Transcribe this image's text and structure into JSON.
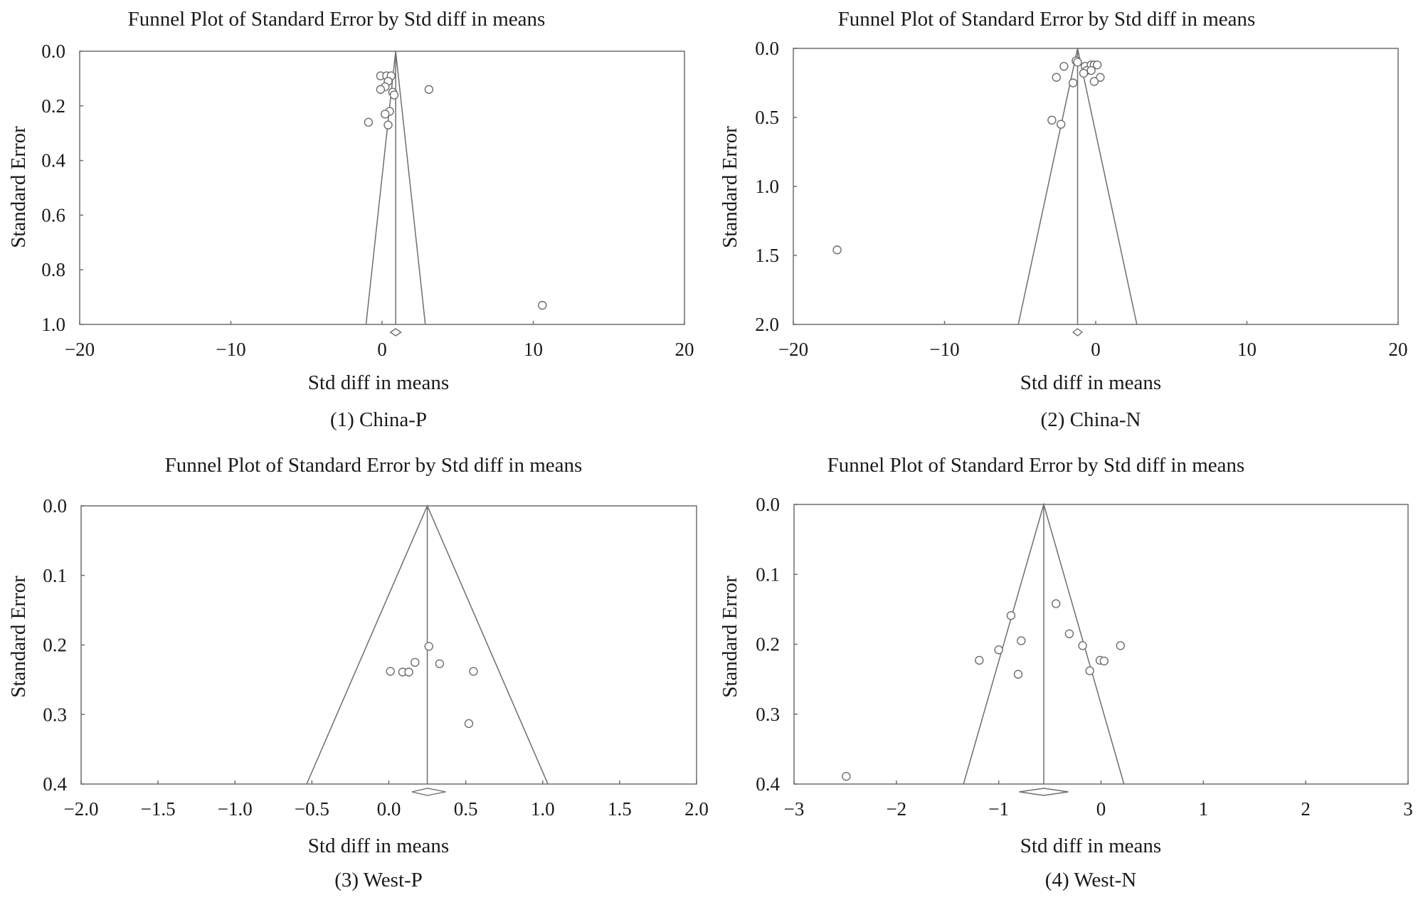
{
  "chart_data": [
    {
      "type": "scatter",
      "title": "Funnel Plot of Standard Error by Std diff in means",
      "xlabel": "Std diff in means",
      "ylabel": "Standard Error",
      "caption": "(1) China-P",
      "xlim": [
        -20,
        20
      ],
      "ylim": [
        0,
        1.0
      ],
      "y_inverted": true,
      "xticks": [
        -20,
        -10,
        0,
        10,
        20
      ],
      "xtick_labels": [
        "−20",
        "−10",
        "0",
        "10",
        "20"
      ],
      "yticks": [
        0,
        0.2,
        0.4,
        0.6,
        0.8,
        1.0
      ],
      "ytick_labels": [
        "0.0",
        "0.2",
        "0.4",
        "0.6",
        "0.8",
        "1.0"
      ],
      "pooled_effect": 0.9,
      "pooled_ci": [
        0.55,
        1.25
      ],
      "points": [
        {
          "x": -0.1,
          "y": 0.09
        },
        {
          "x": 0.3,
          "y": 0.09
        },
        {
          "x": 0.6,
          "y": 0.09
        },
        {
          "x": 0.4,
          "y": 0.11
        },
        {
          "x": 0.2,
          "y": 0.13
        },
        {
          "x": -0.1,
          "y": 0.14
        },
        {
          "x": 0.7,
          "y": 0.15
        },
        {
          "x": 0.8,
          "y": 0.16
        },
        {
          "x": 3.1,
          "y": 0.14
        },
        {
          "x": 0.5,
          "y": 0.22
        },
        {
          "x": 0.2,
          "y": 0.23
        },
        {
          "x": -0.9,
          "y": 0.26
        },
        {
          "x": 0.4,
          "y": 0.27
        },
        {
          "x": 10.6,
          "y": 0.93
        }
      ]
    },
    {
      "type": "scatter",
      "title": "Funnel Plot of Standard Error by Std diff in means",
      "xlabel": "Std diff in means",
      "ylabel": "Standard Error",
      "caption": "(2) China-N",
      "xlim": [
        -20,
        20
      ],
      "ylim": [
        0,
        2.0
      ],
      "y_inverted": true,
      "xticks": [
        -20,
        -10,
        0,
        10,
        20
      ],
      "xtick_labels": [
        "−20",
        "−10",
        "0",
        "10",
        "20"
      ],
      "yticks": [
        0,
        0.5,
        1.0,
        1.5,
        2.0
      ],
      "ytick_labels": [
        "0.0",
        "0.5",
        "1.0",
        "1.5",
        "2.0"
      ],
      "pooled_effect": -1.2,
      "pooled_ci": [
        -1.5,
        -0.9
      ],
      "points": [
        {
          "x": -1.3,
          "y": 0.09
        },
        {
          "x": -1.2,
          "y": 0.1
        },
        {
          "x": -2.1,
          "y": 0.13
        },
        {
          "x": -0.7,
          "y": 0.13
        },
        {
          "x": -0.3,
          "y": 0.12
        },
        {
          "x": -0.1,
          "y": 0.12
        },
        {
          "x": 0.1,
          "y": 0.12
        },
        {
          "x": -0.6,
          "y": 0.16
        },
        {
          "x": -0.3,
          "y": 0.16
        },
        {
          "x": -0.8,
          "y": 0.18
        },
        {
          "x": 0.3,
          "y": 0.21
        },
        {
          "x": -2.6,
          "y": 0.21
        },
        {
          "x": -0.1,
          "y": 0.24
        },
        {
          "x": -1.5,
          "y": 0.25
        },
        {
          "x": -2.9,
          "y": 0.52
        },
        {
          "x": -2.3,
          "y": 0.55
        },
        {
          "x": -17.1,
          "y": 1.46
        }
      ]
    },
    {
      "type": "scatter",
      "title": "Funnel Plot of Standard Error by Std diff in means",
      "xlabel": "Std diff in means",
      "ylabel": "Standard Error",
      "caption": "(3) West-P",
      "xlim": [
        -2.0,
        2.0
      ],
      "ylim": [
        0,
        0.4
      ],
      "y_inverted": true,
      "xticks": [
        -2.0,
        -1.5,
        -1.0,
        -0.5,
        0.0,
        0.5,
        1.0,
        1.5,
        2.0
      ],
      "xtick_labels": [
        "−2.0",
        "−1.5",
        "−1.0",
        "−0.5",
        "0.0",
        "0.5",
        "1.0",
        "1.5",
        "2.0"
      ],
      "yticks": [
        0,
        0.1,
        0.2,
        0.3,
        0.4
      ],
      "ytick_labels": [
        "0.0",
        "0.1",
        "0.2",
        "0.3",
        "0.4"
      ],
      "pooled_effect": 0.25,
      "pooled_ci": [
        0.15,
        0.37
      ],
      "points": [
        {
          "x": 0.26,
          "y": 0.202
        },
        {
          "x": 0.17,
          "y": 0.225
        },
        {
          "x": 0.33,
          "y": 0.227
        },
        {
          "x": 0.01,
          "y": 0.238
        },
        {
          "x": 0.09,
          "y": 0.239
        },
        {
          "x": 0.13,
          "y": 0.239
        },
        {
          "x": 0.55,
          "y": 0.238
        },
        {
          "x": 0.52,
          "y": 0.313
        }
      ]
    },
    {
      "type": "scatter",
      "title": "Funnel Plot of Standard Error by Std diff in means",
      "xlabel": "Std diff in means",
      "ylabel": "Standard Error",
      "caption": "(4) West-N",
      "xlim": [
        -3,
        3
      ],
      "ylim": [
        0,
        0.4
      ],
      "y_inverted": true,
      "xticks": [
        -3,
        -2,
        -1,
        0,
        1,
        2,
        3
      ],
      "xtick_labels": [
        "−3",
        "−2",
        "−1",
        "0",
        "1",
        "2",
        "3"
      ],
      "yticks": [
        0,
        0.1,
        0.2,
        0.3,
        0.4
      ],
      "ytick_labels": [
        "0.0",
        "0.1",
        "0.2",
        "0.3",
        "0.4"
      ],
      "pooled_effect": -0.56,
      "pooled_ci": [
        -0.8,
        -0.32
      ],
      "points": [
        {
          "x": -0.44,
          "y": 0.142
        },
        {
          "x": -0.88,
          "y": 0.159
        },
        {
          "x": -0.31,
          "y": 0.185
        },
        {
          "x": -0.78,
          "y": 0.195
        },
        {
          "x": -0.18,
          "y": 0.202
        },
        {
          "x": 0.19,
          "y": 0.202
        },
        {
          "x": -1.0,
          "y": 0.208
        },
        {
          "x": -1.19,
          "y": 0.223
        },
        {
          "x": -0.01,
          "y": 0.223
        },
        {
          "x": 0.03,
          "y": 0.224
        },
        {
          "x": -0.81,
          "y": 0.243
        },
        {
          "x": -0.11,
          "y": 0.238
        },
        {
          "x": -2.49,
          "y": 0.389
        }
      ]
    }
  ]
}
